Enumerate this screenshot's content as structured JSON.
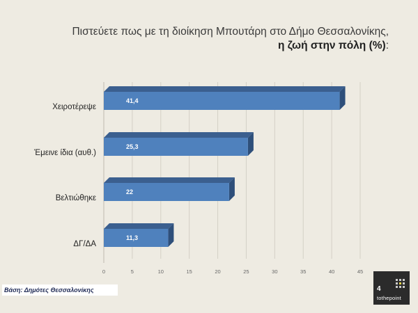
{
  "title": {
    "line1": "Πιστεύετε πως με τη διοίκηση Μπουτάρη στο Δήμο Θεσσαλονίκης,",
    "line2_bold": "η ζωή στην πόλη (%)",
    "line2_suffix": ":"
  },
  "chart_data": {
    "type": "bar",
    "orientation": "horizontal",
    "categories": [
      "Χειροτέρεψε",
      "Έμεινε ίδια (αυθ.)",
      "Βελτιώθηκε",
      "ΔΓ/ΔΑ"
    ],
    "values": [
      41.4,
      25.3,
      22,
      11.3
    ],
    "value_labels": [
      "41,4",
      "25,3",
      "22",
      "11,3"
    ],
    "xlim": [
      0,
      45
    ],
    "xticks": [
      0,
      5,
      10,
      15,
      20,
      25,
      30,
      35,
      40,
      45
    ],
    "grid": true,
    "bar_color": "#4f81bd",
    "bar_side_color": "#2e4f7a",
    "bar_top_color": "#3b5f8f"
  },
  "footer": {
    "base_note": "Βάση: Δημότες Θεσσαλονίκης"
  },
  "logo": {
    "number": "4",
    "text": "tothepoint"
  }
}
